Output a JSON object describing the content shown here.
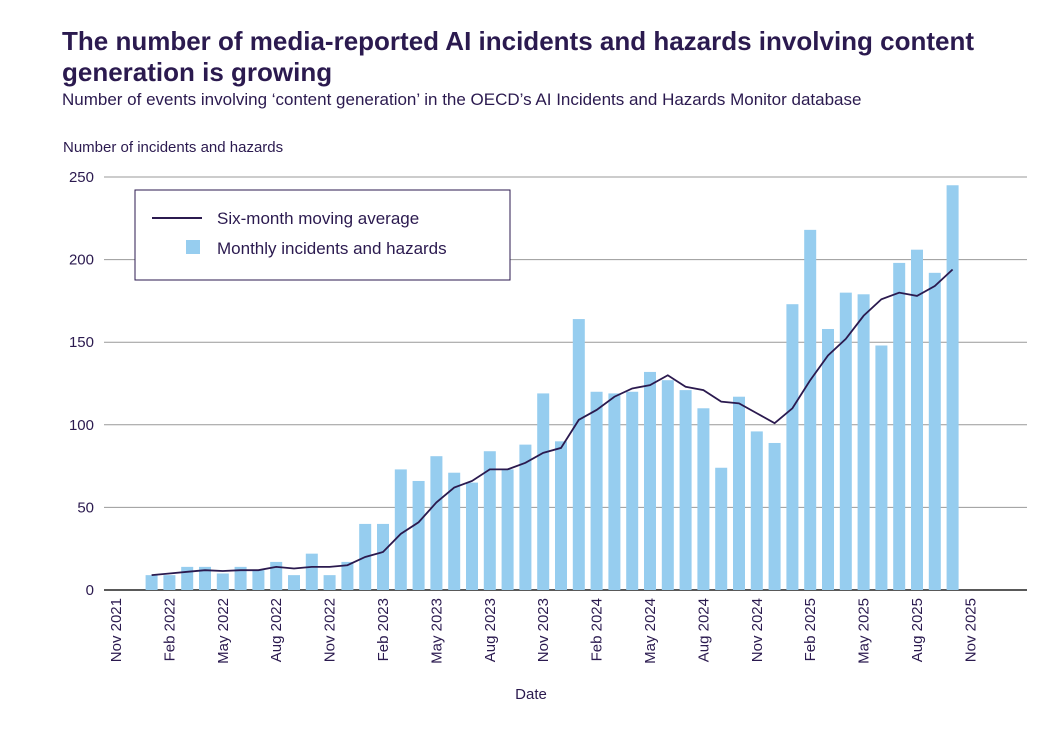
{
  "title": "The number of media-reported AI incidents and hazards involving content generation is growing",
  "subtitle": "Number of events involving ‘content generation’ in the OECD’s AI Incidents and Hazards Monitor database",
  "chart_data": {
    "type": "bar",
    "title": "The number of media-reported AI incidents and hazards involving content generation is growing",
    "subtitle": "Number of events involving ‘content generation’ in the OECD’s AI Incidents and Hazards Monitor database",
    "ylabel": "Number of incidents and hazards",
    "xlabel": "Date",
    "ylim": [
      0,
      250
    ],
    "yticks": [
      0,
      50,
      100,
      150,
      200,
      250
    ],
    "xrange": [
      "2021-11",
      "2025-11"
    ],
    "xticks": [
      "Nov 2021",
      "Feb 2022",
      "May 2022",
      "Aug 2022",
      "Nov 2022",
      "Feb 2023",
      "May 2023",
      "Aug 2023",
      "Nov 2023",
      "Feb 2024",
      "May 2024",
      "Aug 2024",
      "Nov 2024",
      "Feb 2025",
      "May 2025",
      "Aug 2025",
      "Nov 2025"
    ],
    "grid": "horizontal",
    "legend_position": "top-left",
    "x": [
      "2022-01",
      "2022-02",
      "2022-03",
      "2022-04",
      "2022-05",
      "2022-06",
      "2022-07",
      "2022-08",
      "2022-09",
      "2022-10",
      "2022-11",
      "2022-12",
      "2023-01",
      "2023-02",
      "2023-03",
      "2023-04",
      "2023-05",
      "2023-06",
      "2023-07",
      "2023-08",
      "2023-09",
      "2023-10",
      "2023-11",
      "2023-12",
      "2024-01",
      "2024-02",
      "2024-03",
      "2024-04",
      "2024-05",
      "2024-06",
      "2024-07",
      "2024-08",
      "2024-09",
      "2024-10",
      "2024-11",
      "2024-12",
      "2025-01",
      "2025-02",
      "2025-03",
      "2025-04",
      "2025-05",
      "2025-06",
      "2025-07",
      "2025-08",
      "2025-09",
      "2025-10"
    ],
    "series": [
      {
        "name": "Monthly incidents and hazards",
        "type": "bar",
        "color": "#96cdef",
        "values": [
          9,
          9,
          14,
          14,
          10,
          14,
          12,
          17,
          9,
          22,
          9,
          17,
          40,
          40,
          73,
          66,
          81,
          71,
          65,
          84,
          73,
          88,
          119,
          90,
          164,
          120,
          119,
          120,
          132,
          127,
          121,
          110,
          74,
          117,
          96,
          89,
          173,
          218,
          158,
          180,
          179,
          148,
          198,
          206,
          192,
          245
        ]
      },
      {
        "name": "Six-month moving average",
        "type": "line",
        "color": "#2b1a4f",
        "values": [
          9,
          10,
          11,
          12,
          11.5,
          12,
          12,
          14,
          13,
          14,
          14,
          15,
          20,
          23,
          34,
          41,
          53,
          62,
          66,
          73,
          73,
          77,
          83,
          86,
          103,
          109,
          117,
          122,
          124,
          130,
          123,
          121,
          114,
          113,
          107,
          101,
          110,
          127,
          142,
          152,
          166,
          176,
          180,
          178,
          184,
          194
        ]
      }
    ]
  }
}
